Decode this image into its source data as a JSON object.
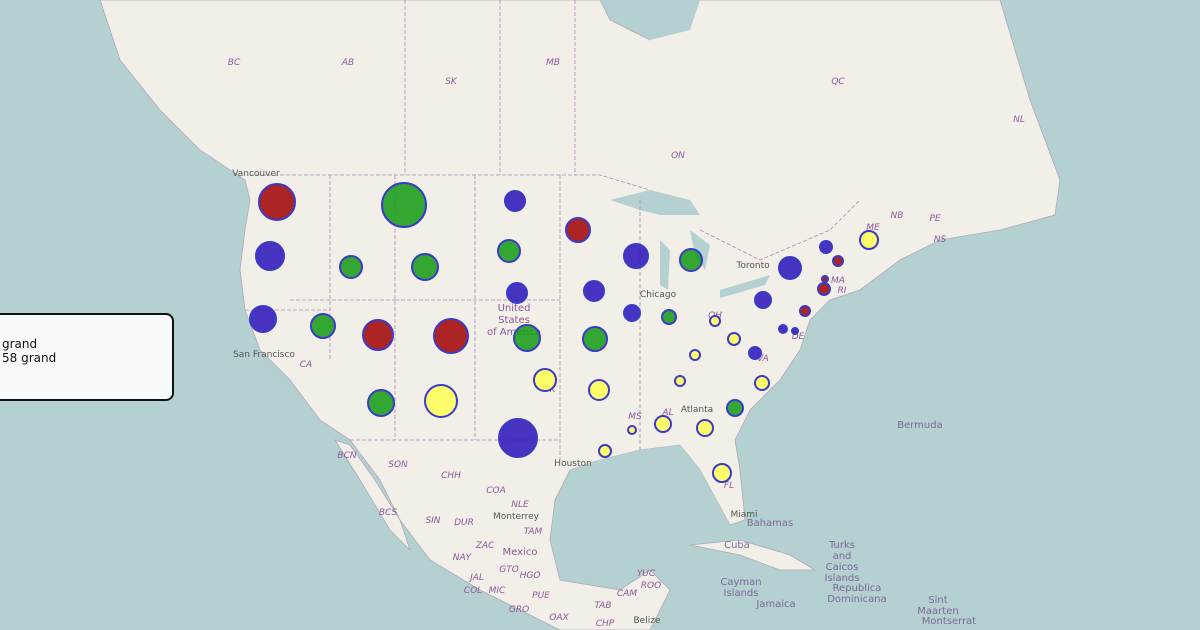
{
  "map": {
    "labels": [
      "BC",
      "AB",
      "SK",
      "MB",
      "ON",
      "QC",
      "NL",
      "NB",
      "PE",
      "NS",
      "Vancouver",
      "San Francisco",
      "CA",
      "United",
      "States",
      "of America",
      "Chicago",
      "Toronto",
      "Atlanta",
      "Houston",
      "Bermuda",
      "Bahamas",
      "Cuba",
      "Turks",
      "and",
      "Caicos",
      "Islands",
      "Cayman",
      "Islands",
      "Jamaica",
      "Republica",
      "Dominicana",
      "Sint",
      "Maarten",
      "Montserrat",
      "Mexico",
      "Monterrey",
      "BCN",
      "SON",
      "CHH",
      "COA",
      "NLE",
      "TAM",
      "BCS",
      "SIN",
      "DUR",
      "ZAC",
      "NAY",
      "JAL",
      "MIC",
      "COL",
      "GRO",
      "OAX",
      "CHP",
      "TAB",
      "CAM",
      "YUC",
      "ROO",
      "Belize",
      "Miami",
      "MS",
      "AL",
      "FL",
      "ME",
      "MA",
      "RI",
      "DE",
      "VA",
      "OK",
      "OH",
      "GTO",
      "HGO",
      "PUE"
    ]
  },
  "popup": {
    "lines": [
      "grand",
      "58 grand"
    ]
  }
}
